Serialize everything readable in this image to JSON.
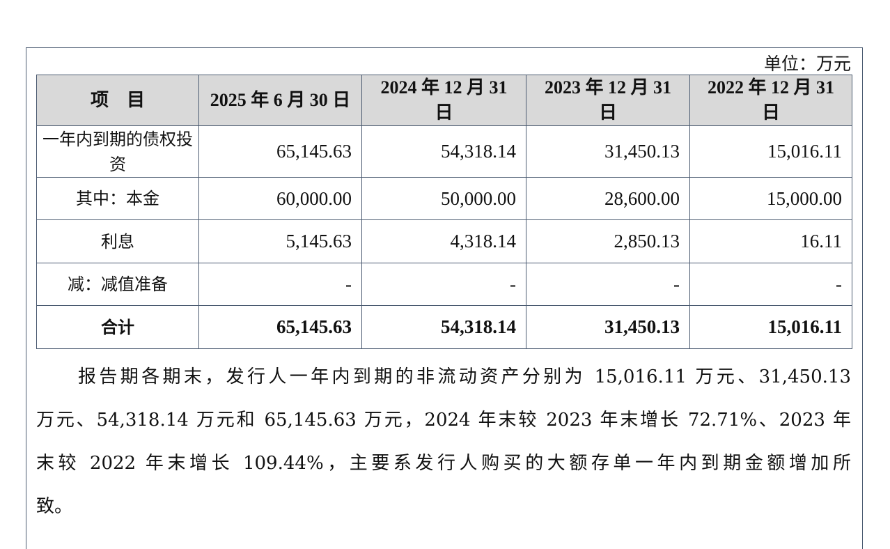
{
  "unit": "单位：万元",
  "table": {
    "headers": [
      "项　目",
      "2025 年 6 月 30 日",
      "2024 年 12 月 31 日",
      "2023 年 12 月 31 日",
      "2022 年 12 月 31 日"
    ],
    "rows": [
      {
        "label": "一年内到期的债权投资",
        "values": [
          "65,145.63",
          "54,318.14",
          "31,450.13",
          "15,016.11"
        ]
      },
      {
        "label": "其中：本金",
        "values": [
          "60,000.00",
          "50,000.00",
          "28,600.00",
          "15,000.00"
        ]
      },
      {
        "label": "利息",
        "values": [
          "5,145.63",
          "4,318.14",
          "2,850.13",
          "16.11"
        ]
      },
      {
        "label": "减：减值准备",
        "values": [
          "-",
          "-",
          "-",
          "-"
        ]
      },
      {
        "label": "合计",
        "values": [
          "65,145.63",
          "54,318.14",
          "31,450.13",
          "15,016.11"
        ]
      }
    ]
  },
  "paragraph": {
    "lines": [
      "报告期各期末，发行人一年内到期的非流动资产分别为 15,016.11 万元、31,450.13",
      "万元、54,318.14 万元和 65,145.63 万元，2024 年末较 2023 年末增长 72.71%、2023 年",
      "末较 2022 年末增长 109.44%，主要系发行人购买的大额存单一年内到期金额增加所",
      "致。"
    ]
  }
}
